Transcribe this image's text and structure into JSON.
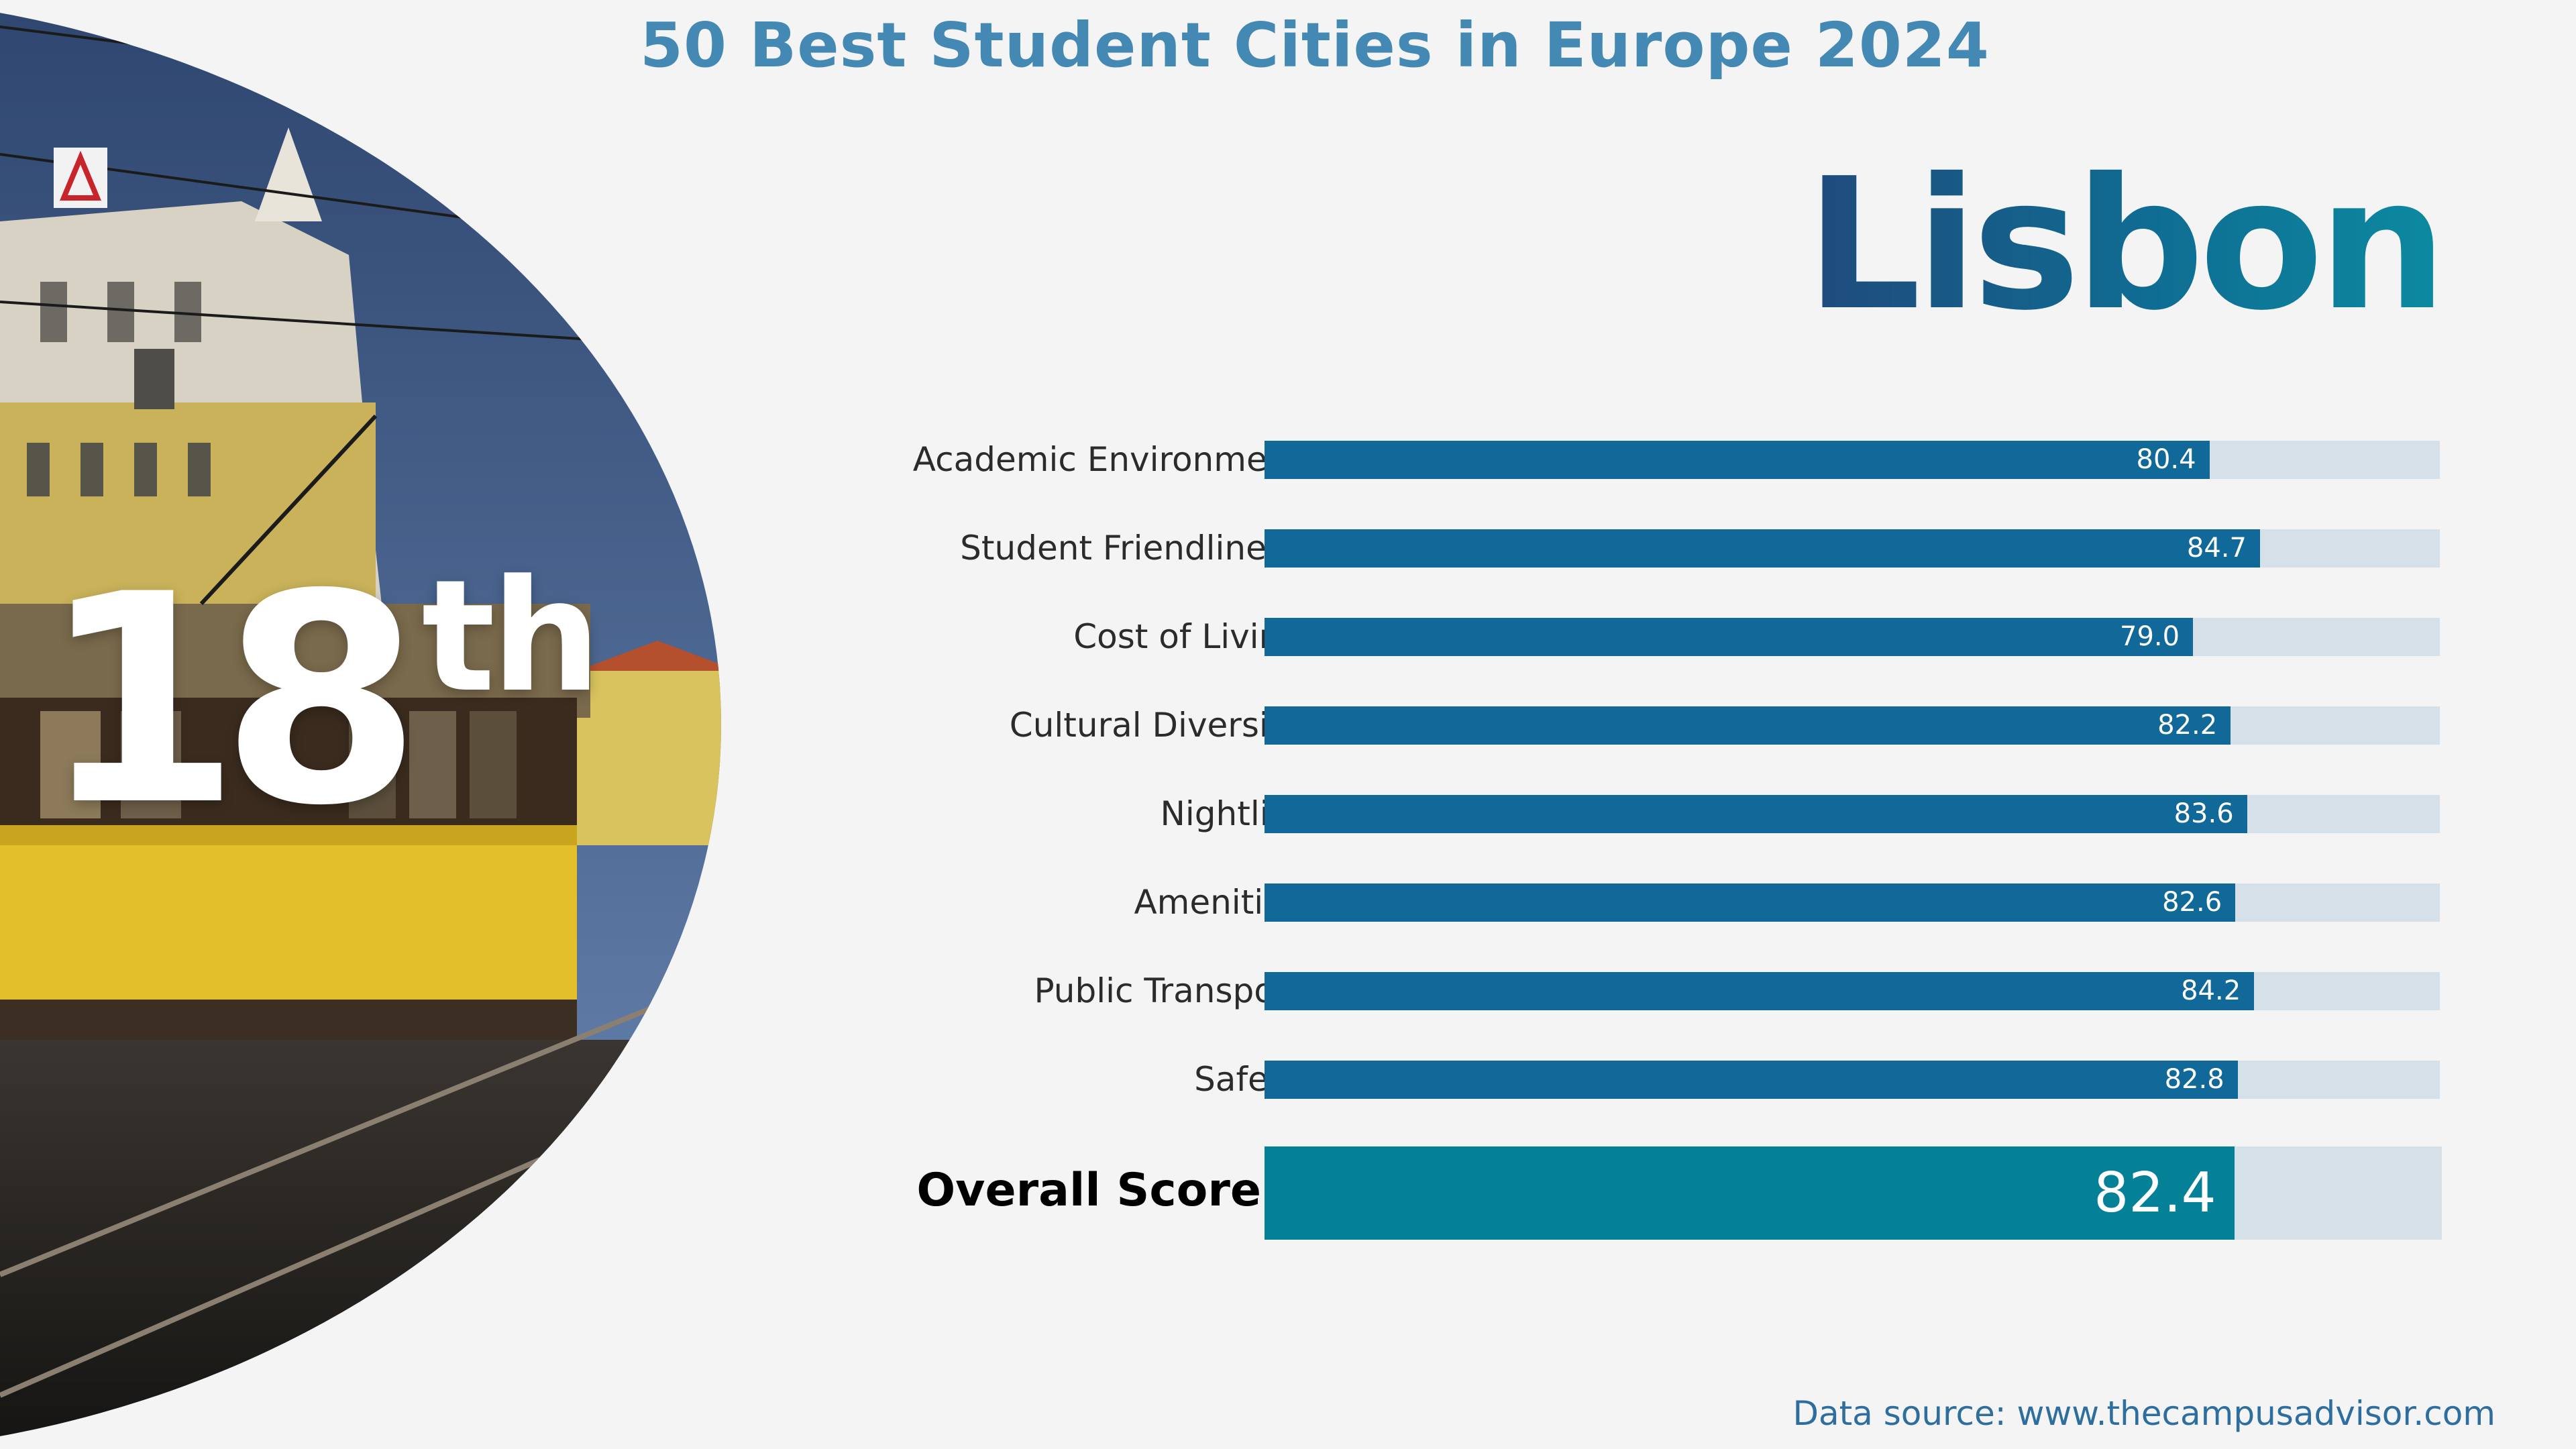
{
  "header": {
    "title": "50 Best Student Cities in Europe 2024"
  },
  "city": {
    "name": "Lisbon",
    "rank_number": "18",
    "rank_suffix": "th"
  },
  "chart_data": {
    "type": "bar",
    "orientation": "horizontal",
    "categories": [
      "Academic Environment",
      "Student Friendliness",
      "Cost of Living",
      "Cultural Diversity",
      "Nightlife",
      "Amenities",
      "Public Transport",
      "Safety"
    ],
    "values": [
      80.4,
      84.7,
      79.0,
      82.2,
      83.6,
      82.6,
      84.2,
      82.8
    ],
    "value_labels": [
      "80.4",
      "84.7",
      "79.0",
      "82.2",
      "83.6",
      "82.6",
      "84.2",
      "82.8"
    ],
    "overall": {
      "label": "Overall Score",
      "value": 82.4,
      "value_label": "82.4"
    },
    "xlim": [
      0,
      100
    ],
    "title": "",
    "xlabel": "",
    "ylabel": "",
    "grid": false,
    "bar_color": "#11699a",
    "track_color": "#d5e0e9",
    "overall_color": "#058197"
  },
  "footer": {
    "source": "Data source: www.thecampusadvisor.com"
  },
  "colors": {
    "title": "#4489b4",
    "city_gradient_start": "#1f4a7c",
    "city_gradient_end": "#0c8aa0",
    "background": "#f4f4f4"
  }
}
